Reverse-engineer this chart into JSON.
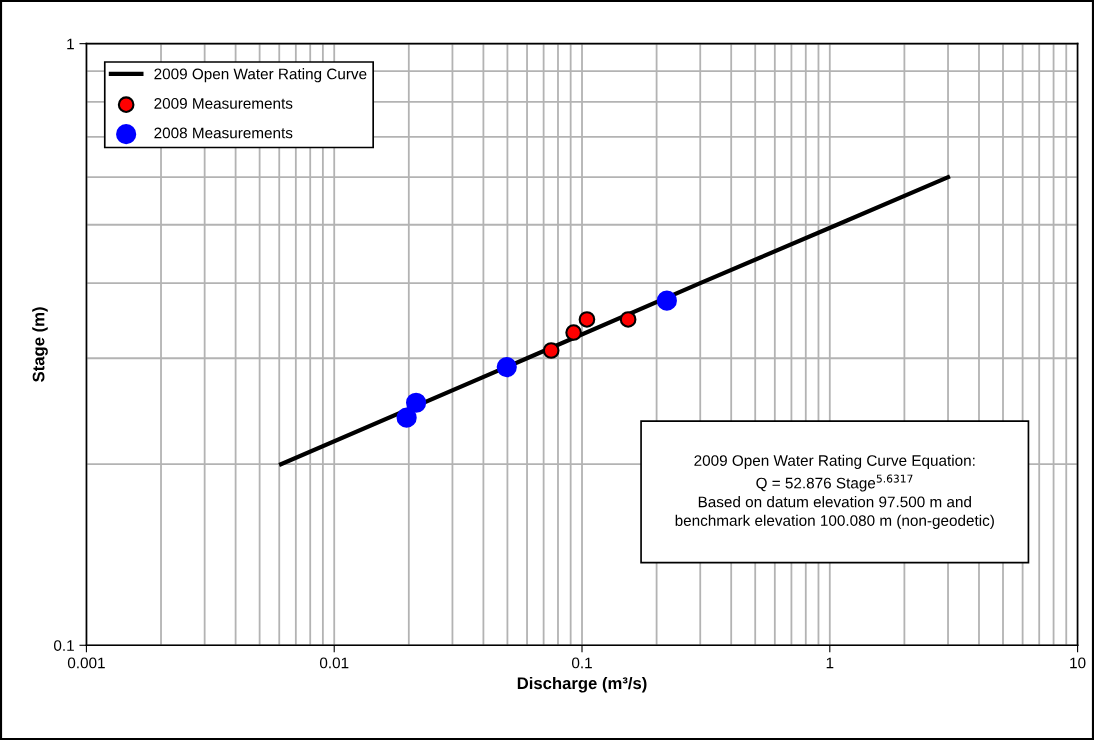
{
  "chart_data": {
    "type": "scatter",
    "xlabel": "Discharge (m³/s)",
    "ylabel": "Stage (m)",
    "log": "xy",
    "xlim": [
      0.001,
      10
    ],
    "ylim": [
      0.1,
      1
    ],
    "xticks": [
      {
        "value": 0.001,
        "label": "0.001"
      },
      {
        "value": 0.01,
        "label": "0.01"
      },
      {
        "value": 0.1,
        "label": "0.1"
      },
      {
        "value": 1,
        "label": "1"
      },
      {
        "value": 10,
        "label": "10"
      }
    ],
    "yticks": [
      {
        "value": 0.1,
        "label": "0.1"
      },
      {
        "value": 1,
        "label": "1"
      }
    ],
    "grid": true,
    "legend": "top left",
    "series": [
      {
        "name": "2009 Open Water Rating Curve",
        "type": "line",
        "color": "#000000",
        "marker": "none",
        "line_style": "solid",
        "x": [
          0.0061,
          0.06,
          0.3,
          1.07,
          3.0
        ],
        "values": [
          0.2,
          0.3,
          0.4,
          0.5,
          0.6
        ]
      },
      {
        "name": "2009 Measurements",
        "color": "#ff0000",
        "marker": "circle",
        "x": [
          0.0751,
          0.0925,
          0.1047,
          0.1535
        ],
        "values": [
          0.309,
          0.331,
          0.348,
          0.348
        ]
      },
      {
        "name": "2008 Measurements",
        "color": "#0000ff",
        "marker": "circle",
        "x": [
          0.0196,
          0.0214,
          0.0497,
          0.22
        ],
        "values": [
          0.239,
          0.253,
          0.29,
          0.374
        ]
      }
    ],
    "annotations": [
      "2009 Open Water Rating Curve Equation:\nQ = 52.876 Stage$^{5.6317}$\nBased on datum elevation 97.500 m and\nbenchmark elevation 100.080 m (non-geodetic)"
    ]
  }
}
